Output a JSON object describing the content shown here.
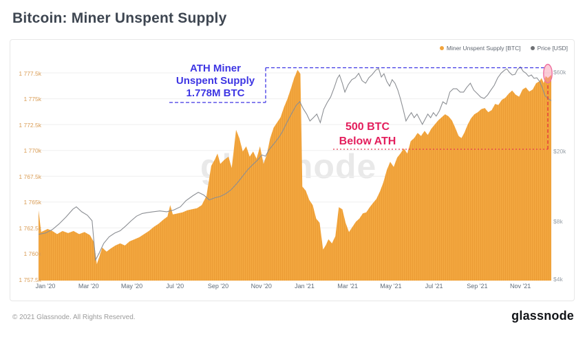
{
  "header": {
    "title": "Bitcoin: Miner Unspent Supply"
  },
  "watermark": "glassnode",
  "legend": [
    {
      "label": "Miner Unspent Supply [BTC]",
      "color": "#F2A43C"
    },
    {
      "label": "Price [USD]",
      "color": "#6E7074"
    }
  ],
  "annotations": {
    "ath_box": {
      "lines": [
        "ATH Miner",
        "Unspent Supply",
        "1.778M BTC"
      ],
      "color": "#3D35E3"
    },
    "below_box": {
      "lines": [
        "500 BTC",
        "Below ATH"
      ],
      "color": "#E31E5C"
    },
    "highlight_ellipse_color": "#EE6FA0",
    "red_dash_color": "#E63B3B"
  },
  "footer": {
    "copyright": "© 2021 Glassnode. All Rights Reserved.",
    "brand": "glassnode"
  },
  "chart_data": {
    "type": "area",
    "title": "Bitcoin: Miner Unspent Supply",
    "grid": true,
    "legend_position": "top-right",
    "x_axis": {
      "labels": [
        "Jan '20",
        "Mar '20",
        "May '20",
        "Jul '20",
        "Sep '20",
        "Nov '20",
        "Jan '21",
        "Mar '21",
        "May '21",
        "Jul '21",
        "Sep '21",
        "Nov '21"
      ],
      "tick_month_positions": [
        0,
        2,
        4,
        6,
        8,
        10,
        12,
        14,
        16,
        18,
        20,
        22
      ],
      "range_months": [
        -0.32,
        23.43
      ]
    },
    "y_left": {
      "axis_for": "Miner Unspent Supply [BTC]",
      "scale": "linear",
      "range_kbtc": [
        1757.4,
        1778.5
      ],
      "tick_values_kbtc": [
        1757.5,
        1760,
        1762.5,
        1765,
        1767.5,
        1770,
        1772.5,
        1775,
        1777.5
      ],
      "tick_labels": [
        "1 757.5k",
        "1 760k",
        "1 762.5k",
        "1 765k",
        "1 767.5k",
        "1 770k",
        "1 772.5k",
        "1 775k",
        "1 777.5k"
      ],
      "label_color": "#D99C54"
    },
    "y_right": {
      "axis_for": "Price [USD]",
      "scale": "log",
      "tick_labels": [
        "$60k",
        "$20k",
        "$8k",
        "$4k"
      ],
      "tick_values_kusd": [
        60,
        20,
        8,
        4
      ],
      "anchors_kusd_to_y": [
        [
          4,
          347
        ],
        [
          8,
          263
        ],
        [
          20,
          161
        ],
        [
          60,
          46
        ]
      ],
      "label_color": "#98A0A8"
    },
    "series": [
      {
        "name": "Miner Unspent Supply [BTC]",
        "kind": "area-bars",
        "axis": "left",
        "color": "#F3A73F",
        "stripe_color": "#E6952F",
        "points_month_kbtc": [
          [
            -0.32,
            1764.2
          ],
          [
            -0.2,
            1762.1
          ],
          [
            0.1,
            1762.4
          ],
          [
            0.32,
            1762.2
          ],
          [
            0.54,
            1761.9
          ],
          [
            0.79,
            1762.2
          ],
          [
            1.05,
            1762.0
          ],
          [
            1.3,
            1762.2
          ],
          [
            1.56,
            1761.9
          ],
          [
            1.81,
            1762.1
          ],
          [
            2.06,
            1761.8
          ],
          [
            2.25,
            1761.1
          ],
          [
            2.38,
            1759.0
          ],
          [
            2.51,
            1759.8
          ],
          [
            2.63,
            1760.6
          ],
          [
            2.83,
            1760.2
          ],
          [
            3.02,
            1760.5
          ],
          [
            3.24,
            1760.8
          ],
          [
            3.46,
            1761.0
          ],
          [
            3.68,
            1760.8
          ],
          [
            3.9,
            1761.2
          ],
          [
            4.13,
            1761.4
          ],
          [
            4.35,
            1761.6
          ],
          [
            4.57,
            1761.9
          ],
          [
            4.79,
            1762.2
          ],
          [
            5.02,
            1762.6
          ],
          [
            5.24,
            1762.9
          ],
          [
            5.46,
            1763.3
          ],
          [
            5.65,
            1763.6
          ],
          [
            5.78,
            1764.7
          ],
          [
            5.9,
            1763.8
          ],
          [
            6.13,
            1763.9
          ],
          [
            6.35,
            1764.0
          ],
          [
            6.57,
            1764.2
          ],
          [
            6.79,
            1764.3
          ],
          [
            7.02,
            1764.4
          ],
          [
            7.24,
            1764.7
          ],
          [
            7.46,
            1765.6
          ],
          [
            7.68,
            1768.5
          ],
          [
            7.84,
            1769.1
          ],
          [
            7.97,
            1769.7
          ],
          [
            8.1,
            1768.7
          ],
          [
            8.29,
            1769.1
          ],
          [
            8.48,
            1769.4
          ],
          [
            8.63,
            1768.3
          ],
          [
            8.83,
            1772.0
          ],
          [
            8.98,
            1771.2
          ],
          [
            9.14,
            1769.9
          ],
          [
            9.3,
            1770.4
          ],
          [
            9.46,
            1769.4
          ],
          [
            9.62,
            1769.9
          ],
          [
            9.78,
            1769.2
          ],
          [
            9.94,
            1770.4
          ],
          [
            10.1,
            1768.7
          ],
          [
            10.25,
            1769.6
          ],
          [
            10.41,
            1771.2
          ],
          [
            10.57,
            1772.2
          ],
          [
            10.73,
            1772.7
          ],
          [
            10.89,
            1773.2
          ],
          [
            11.05,
            1774.2
          ],
          [
            11.21,
            1775.0
          ],
          [
            11.37,
            1776.0
          ],
          [
            11.52,
            1777.0
          ],
          [
            11.68,
            1777.8
          ],
          [
            11.81,
            1777.4
          ],
          [
            11.9,
            1766.5
          ],
          [
            12.06,
            1766.1
          ],
          [
            12.22,
            1765.2
          ],
          [
            12.38,
            1764.7
          ],
          [
            12.54,
            1763.4
          ],
          [
            12.7,
            1763.0
          ],
          [
            12.86,
            1760.4
          ],
          [
            12.98,
            1760.8
          ],
          [
            13.11,
            1761.4
          ],
          [
            13.27,
            1761.0
          ],
          [
            13.43,
            1761.7
          ],
          [
            13.59,
            1764.5
          ],
          [
            13.75,
            1764.3
          ],
          [
            13.9,
            1763.0
          ],
          [
            14.06,
            1762.1
          ],
          [
            14.22,
            1762.6
          ],
          [
            14.38,
            1763.1
          ],
          [
            14.54,
            1763.4
          ],
          [
            14.7,
            1763.9
          ],
          [
            14.86,
            1764.0
          ],
          [
            15.02,
            1764.5
          ],
          [
            15.17,
            1764.9
          ],
          [
            15.33,
            1765.3
          ],
          [
            15.49,
            1766.0
          ],
          [
            15.65,
            1766.9
          ],
          [
            15.81,
            1768.1
          ],
          [
            15.97,
            1768.9
          ],
          [
            16.13,
            1768.4
          ],
          [
            16.29,
            1769.3
          ],
          [
            16.44,
            1769.7
          ],
          [
            16.6,
            1770.2
          ],
          [
            16.76,
            1769.7
          ],
          [
            16.92,
            1770.9
          ],
          [
            17.08,
            1771.2
          ],
          [
            17.24,
            1771.7
          ],
          [
            17.4,
            1771.4
          ],
          [
            17.56,
            1771.9
          ],
          [
            17.71,
            1771.5
          ],
          [
            17.87,
            1772.1
          ],
          [
            18.03,
            1772.5
          ],
          [
            18.19,
            1772.9
          ],
          [
            18.35,
            1773.2
          ],
          [
            18.51,
            1773.5
          ],
          [
            18.67,
            1773.3
          ],
          [
            18.83,
            1772.9
          ],
          [
            18.98,
            1772.2
          ],
          [
            19.14,
            1771.4
          ],
          [
            19.27,
            1771.2
          ],
          [
            19.4,
            1771.7
          ],
          [
            19.56,
            1772.5
          ],
          [
            19.71,
            1773.1
          ],
          [
            19.87,
            1773.5
          ],
          [
            20.03,
            1773.7
          ],
          [
            20.19,
            1774.0
          ],
          [
            20.35,
            1774.1
          ],
          [
            20.51,
            1773.7
          ],
          [
            20.67,
            1773.9
          ],
          [
            20.83,
            1774.5
          ],
          [
            20.98,
            1774.4
          ],
          [
            21.14,
            1774.9
          ],
          [
            21.3,
            1775.1
          ],
          [
            21.46,
            1775.5
          ],
          [
            21.62,
            1775.8
          ],
          [
            21.78,
            1775.4
          ],
          [
            21.94,
            1775.2
          ],
          [
            22.1,
            1775.9
          ],
          [
            22.25,
            1776.1
          ],
          [
            22.41,
            1775.7
          ],
          [
            22.57,
            1775.9
          ],
          [
            22.73,
            1776.5
          ],
          [
            22.89,
            1776.7
          ],
          [
            22.98,
            1777.0
          ],
          [
            23.08,
            1776.5
          ],
          [
            23.17,
            1777.2
          ],
          [
            23.27,
            1777.0
          ],
          [
            23.43,
            1777.3
          ]
        ]
      },
      {
        "name": "Price [USD]",
        "kind": "line",
        "axis": "right",
        "color": "#8B8E93",
        "points_month_kusd": [
          [
            -0.32,
            6.8
          ],
          [
            0,
            6.9
          ],
          [
            0.32,
            7.2
          ],
          [
            0.63,
            7.7
          ],
          [
            0.95,
            8.4
          ],
          [
            1.27,
            9.3
          ],
          [
            1.43,
            9.6
          ],
          [
            1.68,
            9.0
          ],
          [
            1.94,
            8.6
          ],
          [
            2.16,
            8.0
          ],
          [
            2.32,
            5.0
          ],
          [
            2.48,
            5.4
          ],
          [
            2.7,
            6.1
          ],
          [
            2.95,
            6.6
          ],
          [
            3.21,
            6.9
          ],
          [
            3.46,
            7.1
          ],
          [
            3.71,
            7.5
          ],
          [
            3.97,
            8.0
          ],
          [
            4.22,
            8.5
          ],
          [
            4.48,
            8.8
          ],
          [
            4.73,
            8.9
          ],
          [
            4.98,
            9.0
          ],
          [
            5.3,
            9.1
          ],
          [
            5.62,
            9.0
          ],
          [
            5.94,
            9.2
          ],
          [
            6.25,
            9.6
          ],
          [
            6.51,
            10.4
          ],
          [
            6.83,
            11.1
          ],
          [
            7.08,
            11.6
          ],
          [
            7.33,
            11.2
          ],
          [
            7.59,
            10.5
          ],
          [
            7.84,
            10.8
          ],
          [
            8.1,
            11.0
          ],
          [
            8.35,
            11.4
          ],
          [
            8.6,
            12.0
          ],
          [
            8.86,
            13.0
          ],
          [
            9.11,
            14.2
          ],
          [
            9.37,
            15.6
          ],
          [
            9.59,
            16.6
          ],
          [
            9.81,
            17.6
          ],
          [
            10.03,
            18.9
          ],
          [
            10.19,
            18.6
          ],
          [
            10.35,
            20.2
          ],
          [
            10.51,
            21.4
          ],
          [
            10.67,
            22.7
          ],
          [
            10.83,
            24.2
          ],
          [
            10.98,
            26.1
          ],
          [
            11.14,
            28.8
          ],
          [
            11.3,
            31.6
          ],
          [
            11.46,
            34.5
          ],
          [
            11.62,
            37.6
          ],
          [
            11.78,
            39.5
          ],
          [
            11.94,
            35.8
          ],
          [
            12.1,
            33.2
          ],
          [
            12.25,
            30.2
          ],
          [
            12.41,
            31.6
          ],
          [
            12.57,
            33.2
          ],
          [
            12.73,
            29.5
          ],
          [
            12.89,
            35.5
          ],
          [
            13.05,
            39.0
          ],
          [
            13.21,
            42.1
          ],
          [
            13.37,
            47.7
          ],
          [
            13.52,
            54.5
          ],
          [
            13.62,
            57.2
          ],
          [
            13.75,
            51.0
          ],
          [
            13.87,
            45.1
          ],
          [
            14.03,
            50.1
          ],
          [
            14.19,
            53.6
          ],
          [
            14.35,
            55.0
          ],
          [
            14.51,
            58.5
          ],
          [
            14.67,
            52.8
          ],
          [
            14.83,
            51.0
          ],
          [
            14.98,
            55.0
          ],
          [
            15.14,
            57.7
          ],
          [
            15.3,
            61.2
          ],
          [
            15.43,
            62.5
          ],
          [
            15.56,
            55.6
          ],
          [
            15.68,
            58.2
          ],
          [
            15.81,
            52.3
          ],
          [
            15.94,
            49.0
          ],
          [
            16.06,
            53.6
          ],
          [
            16.19,
            51.0
          ],
          [
            16.32,
            46.4
          ],
          [
            16.44,
            41.3
          ],
          [
            16.57,
            35.5
          ],
          [
            16.7,
            30.2
          ],
          [
            16.83,
            32.3
          ],
          [
            16.95,
            33.9
          ],
          [
            17.08,
            31.6
          ],
          [
            17.21,
            33.2
          ],
          [
            17.33,
            31.0
          ],
          [
            17.46,
            28.8
          ],
          [
            17.59,
            31.0
          ],
          [
            17.71,
            33.2
          ],
          [
            17.84,
            31.6
          ],
          [
            17.97,
            33.9
          ],
          [
            18.1,
            32.3
          ],
          [
            18.25,
            34.8
          ],
          [
            18.41,
            39.4
          ],
          [
            18.57,
            38.1
          ],
          [
            18.73,
            45.1
          ],
          [
            18.89,
            47.2
          ],
          [
            19.05,
            47.2
          ],
          [
            19.21,
            45.1
          ],
          [
            19.37,
            45.1
          ],
          [
            19.52,
            48.2
          ],
          [
            19.68,
            51.0
          ],
          [
            19.84,
            46.3
          ],
          [
            20.0,
            44.2
          ],
          [
            20.16,
            42.1
          ],
          [
            20.32,
            41.3
          ],
          [
            20.48,
            43.3
          ],
          [
            20.63,
            46.3
          ],
          [
            20.79,
            49.6
          ],
          [
            20.95,
            55.0
          ],
          [
            21.11,
            58.7
          ],
          [
            21.27,
            61.2
          ],
          [
            21.37,
            62.3
          ],
          [
            21.49,
            59.3
          ],
          [
            21.62,
            57.2
          ],
          [
            21.75,
            57.7
          ],
          [
            21.87,
            61.8
          ],
          [
            22.0,
            64.0
          ],
          [
            22.13,
            60.2
          ],
          [
            22.25,
            58.7
          ],
          [
            22.38,
            56.1
          ],
          [
            22.51,
            57.2
          ],
          [
            22.63,
            54.6
          ],
          [
            22.76,
            55.0
          ],
          [
            22.89,
            52.3
          ],
          [
            23.02,
            47.7
          ],
          [
            23.14,
            42.9
          ],
          [
            23.27,
            41.3
          ],
          [
            23.43,
            40.0
          ]
        ]
      }
    ],
    "annotation_values": {
      "ath_level_kbtc": 1778.0,
      "last_point_month": 23.27
    }
  }
}
